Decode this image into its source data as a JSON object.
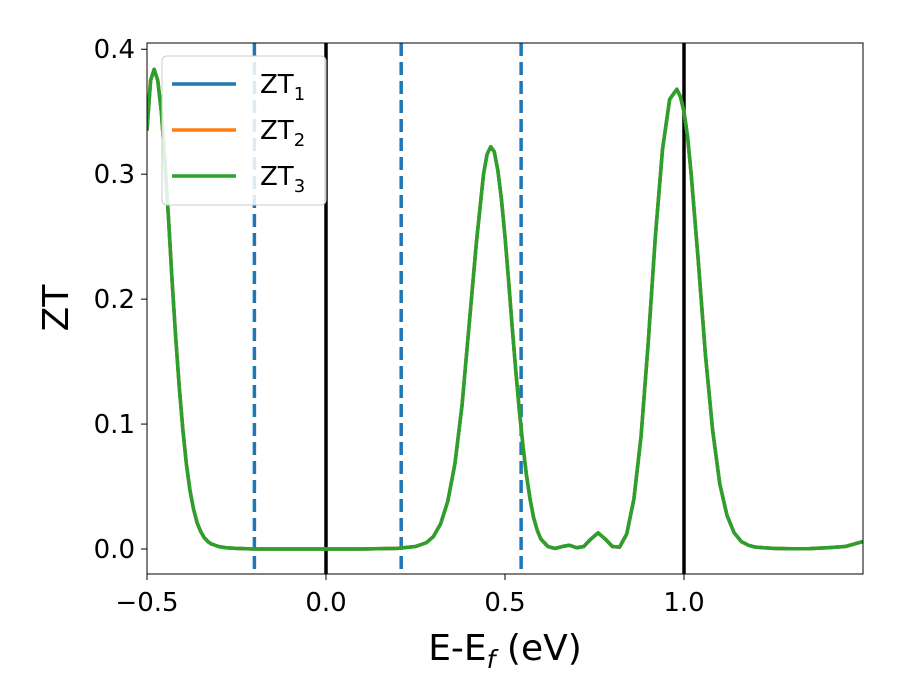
{
  "chart_data": {
    "type": "line",
    "xlabel": "E-E",
    "xlabel_sub": "f",
    "xlabel_unit": " (eV)",
    "ylabel": "ZT",
    "xlim": [
      -0.5,
      1.5
    ],
    "ylim": [
      -0.02,
      0.405
    ],
    "xticks": [
      -0.5,
      0.0,
      0.5,
      1.0
    ],
    "xtick_labels": [
      "−0.5",
      "0.0",
      "0.5",
      "1.0"
    ],
    "yticks": [
      0.0,
      0.1,
      0.2,
      0.3,
      0.4
    ],
    "ytick_labels": [
      "0.0",
      "0.1",
      "0.2",
      "0.3",
      "0.4"
    ],
    "grid": false,
    "legend_position": "top-left",
    "vlines_solid": [
      0.0,
      1.0
    ],
    "vlines_dashed": [
      -0.2,
      0.21,
      0.545
    ],
    "vline_solid_color": "#000000",
    "vline_dashed_color": "#1f77b4",
    "x": [
      -0.5,
      -0.49,
      -0.48,
      -0.47,
      -0.46,
      -0.45,
      -0.44,
      -0.43,
      -0.42,
      -0.41,
      -0.4,
      -0.39,
      -0.38,
      -0.37,
      -0.36,
      -0.35,
      -0.34,
      -0.33,
      -0.32,
      -0.3,
      -0.28,
      -0.25,
      -0.2,
      -0.1,
      0.0,
      0.1,
      0.2,
      0.25,
      0.28,
      0.3,
      0.32,
      0.34,
      0.36,
      0.38,
      0.4,
      0.42,
      0.44,
      0.45,
      0.46,
      0.47,
      0.48,
      0.49,
      0.5,
      0.51,
      0.52,
      0.53,
      0.54,
      0.55,
      0.56,
      0.57,
      0.58,
      0.59,
      0.6,
      0.62,
      0.64,
      0.66,
      0.68,
      0.7,
      0.72,
      0.74,
      0.76,
      0.78,
      0.8,
      0.82,
      0.84,
      0.86,
      0.88,
      0.9,
      0.92,
      0.94,
      0.96,
      0.98,
      0.99,
      1.0,
      1.01,
      1.02,
      1.04,
      1.06,
      1.08,
      1.1,
      1.12,
      1.14,
      1.16,
      1.18,
      1.2,
      1.25,
      1.3,
      1.35,
      1.4,
      1.45,
      1.5
    ],
    "series": [
      {
        "name": "ZT",
        "name_sub": "1",
        "color": "#1f77b4",
        "values": [
          0.335,
          0.375,
          0.384,
          0.375,
          0.35,
          0.31,
          0.265,
          0.215,
          0.17,
          0.13,
          0.096,
          0.068,
          0.047,
          0.032,
          0.021,
          0.014,
          0.009,
          0.006,
          0.004,
          0.002,
          0.001,
          0.0005,
          0.0,
          0.0,
          0.0,
          0.0,
          0.0005,
          0.002,
          0.005,
          0.01,
          0.02,
          0.038,
          0.068,
          0.115,
          0.18,
          0.245,
          0.3,
          0.316,
          0.322,
          0.318,
          0.303,
          0.28,
          0.25,
          0.215,
          0.178,
          0.143,
          0.111,
          0.083,
          0.059,
          0.04,
          0.025,
          0.015,
          0.008,
          0.002,
          0.0005,
          0.002,
          0.003,
          0.001,
          0.002,
          0.008,
          0.013,
          0.008,
          0.002,
          0.0015,
          0.012,
          0.04,
          0.09,
          0.165,
          0.25,
          0.32,
          0.36,
          0.368,
          0.362,
          0.35,
          0.33,
          0.3,
          0.23,
          0.155,
          0.095,
          0.052,
          0.027,
          0.013,
          0.006,
          0.003,
          0.0015,
          0.0005,
          0.0002,
          0.0003,
          0.001,
          0.002,
          0.006
        ]
      },
      {
        "name": "ZT",
        "name_sub": "2",
        "color": "#ff7f0e",
        "values": [
          0.335,
          0.375,
          0.384,
          0.375,
          0.35,
          0.31,
          0.265,
          0.215,
          0.17,
          0.13,
          0.096,
          0.068,
          0.047,
          0.032,
          0.021,
          0.014,
          0.009,
          0.006,
          0.004,
          0.002,
          0.001,
          0.0005,
          0.0,
          0.0,
          0.0,
          0.0,
          0.0005,
          0.002,
          0.005,
          0.01,
          0.02,
          0.038,
          0.068,
          0.115,
          0.18,
          0.245,
          0.3,
          0.316,
          0.322,
          0.318,
          0.303,
          0.28,
          0.25,
          0.215,
          0.178,
          0.143,
          0.111,
          0.083,
          0.059,
          0.04,
          0.025,
          0.015,
          0.008,
          0.002,
          0.0005,
          0.002,
          0.003,
          0.001,
          0.002,
          0.008,
          0.013,
          0.008,
          0.002,
          0.0015,
          0.012,
          0.04,
          0.09,
          0.165,
          0.25,
          0.32,
          0.36,
          0.368,
          0.362,
          0.35,
          0.33,
          0.3,
          0.23,
          0.155,
          0.095,
          0.052,
          0.027,
          0.013,
          0.006,
          0.003,
          0.0015,
          0.0005,
          0.0002,
          0.0003,
          0.001,
          0.002,
          0.006
        ]
      },
      {
        "name": "ZT",
        "name_sub": "3",
        "color": "#2ca02c",
        "values": [
          0.335,
          0.375,
          0.384,
          0.375,
          0.35,
          0.31,
          0.265,
          0.215,
          0.17,
          0.13,
          0.096,
          0.068,
          0.047,
          0.032,
          0.021,
          0.014,
          0.009,
          0.006,
          0.004,
          0.002,
          0.001,
          0.0005,
          0.0,
          0.0,
          0.0,
          0.0,
          0.0005,
          0.002,
          0.005,
          0.01,
          0.02,
          0.038,
          0.068,
          0.115,
          0.18,
          0.245,
          0.3,
          0.316,
          0.322,
          0.318,
          0.303,
          0.28,
          0.25,
          0.215,
          0.178,
          0.143,
          0.111,
          0.083,
          0.059,
          0.04,
          0.025,
          0.015,
          0.008,
          0.002,
          0.0005,
          0.002,
          0.003,
          0.001,
          0.002,
          0.008,
          0.013,
          0.008,
          0.002,
          0.0015,
          0.012,
          0.04,
          0.09,
          0.165,
          0.25,
          0.32,
          0.36,
          0.368,
          0.362,
          0.35,
          0.33,
          0.3,
          0.23,
          0.155,
          0.095,
          0.052,
          0.027,
          0.013,
          0.006,
          0.003,
          0.0015,
          0.0005,
          0.0002,
          0.0003,
          0.001,
          0.002,
          0.006
        ]
      }
    ]
  }
}
